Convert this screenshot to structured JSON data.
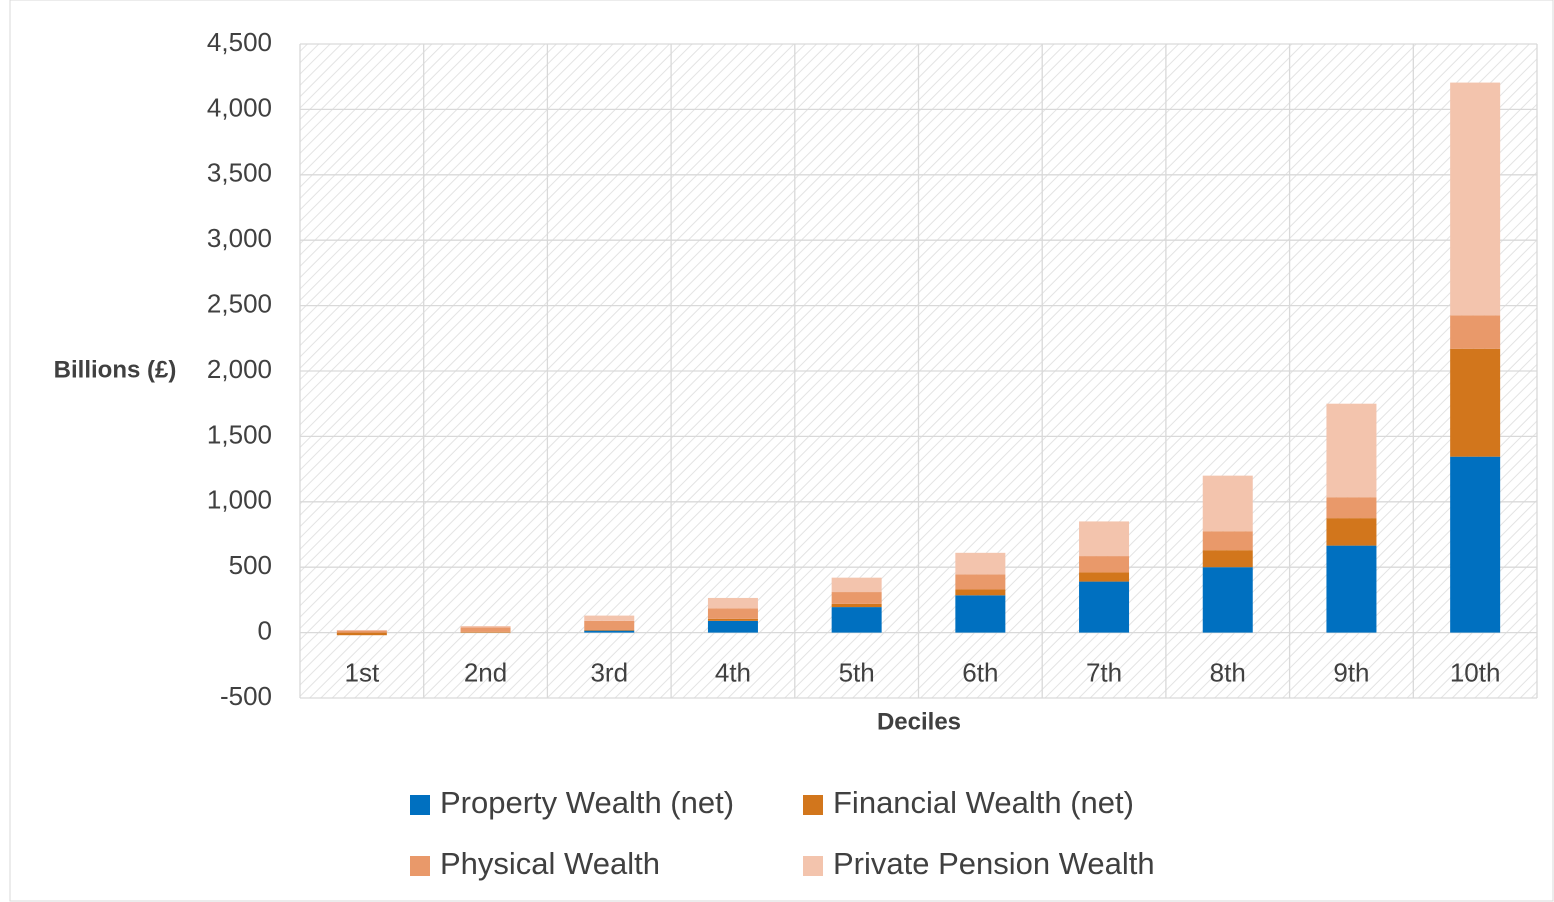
{
  "chart_data": {
    "type": "stacked-bar",
    "x_label": "Deciles",
    "y_label": "Billions (£)",
    "categories": [
      "1st",
      "2nd",
      "3rd",
      "4th",
      "5th",
      "6th",
      "7th",
      "8th",
      "9th",
      "10th"
    ],
    "series": [
      {
        "name": "Property Wealth (net)",
        "color": "#0070c0",
        "values": [
          0,
          0,
          15,
          90,
          195,
          285,
          390,
          500,
          665,
          1345
        ]
      },
      {
        "name": "Financial Wealth (net)",
        "color": "#d2761c",
        "values": [
          -20,
          5,
          5,
          15,
          25,
          45,
          70,
          130,
          210,
          825
        ]
      },
      {
        "name": "Physical Wealth",
        "color": "#e9996a",
        "values": [
          15,
          35,
          70,
          80,
          90,
          115,
          125,
          145,
          160,
          255
        ]
      },
      {
        "name": "Private Pension Wealth",
        "color": "#f3c4ad",
        "values": [
          5,
          10,
          40,
          80,
          110,
          165,
          265,
          425,
          715,
          1780
        ]
      }
    ],
    "ylim": [
      -500,
      4500
    ],
    "yticks": [
      -500,
      0,
      500,
      {
        "value": 1000,
        "label": "1,000"
      },
      {
        "value": 1500,
        "label": "1,500"
      },
      {
        "value": 2000,
        "label": "2,000"
      },
      {
        "value": 2500,
        "label": "2,500"
      },
      {
        "value": 3000,
        "label": "3,000"
      },
      {
        "value": 3500,
        "label": "3,500"
      },
      {
        "value": 4000,
        "label": "4,000"
      },
      {
        "value": 4500,
        "label": "4,500"
      }
    ],
    "grid": true,
    "legend": "bottom"
  }
}
